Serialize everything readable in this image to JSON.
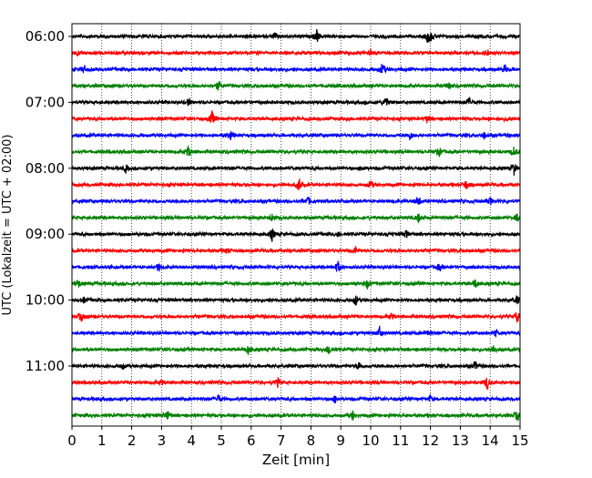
{
  "chart_data": {
    "type": "line",
    "title": "",
    "xlabel": "Zeit  [min]",
    "ylabel": "UTC (Lokalzeit = UTC + 02:00)",
    "xlim": [
      0,
      15
    ],
    "x_ticks": [
      0,
      1,
      2,
      3,
      4,
      5,
      6,
      7,
      8,
      9,
      10,
      11,
      12,
      13,
      14,
      15
    ],
    "x_tick_labels": [
      "0",
      "1",
      "2",
      "3",
      "4",
      "5",
      "6",
      "7",
      "8",
      "9",
      "10",
      "11",
      "12",
      "13",
      "14",
      "15"
    ],
    "y_tick_labels": [
      "06:00",
      "07:00",
      "08:00",
      "09:00",
      "10:00",
      "11:00"
    ],
    "y_tick_trace_index": [
      0,
      4,
      8,
      12,
      16,
      20
    ],
    "grid": "vertical-dotted",
    "trace_interval_minutes": 15,
    "color_cycle": [
      "#000000",
      "#ff0000",
      "#0000ff",
      "#008000"
    ],
    "traces": [
      {
        "start": "06:00",
        "color": "#000000",
        "events": [
          {
            "t": 8.2,
            "a": 7
          },
          {
            "t": 11.9,
            "a": 6
          },
          {
            "t": 12.0,
            "a": 5
          },
          {
            "t": 6.8,
            "a": 4
          }
        ]
      },
      {
        "start": "06:15",
        "color": "#ff0000",
        "events": [
          {
            "t": 0.2,
            "a": 3
          },
          {
            "t": 10.0,
            "a": 4
          },
          {
            "t": 13.9,
            "a": 4
          }
        ]
      },
      {
        "start": "06:30",
        "color": "#0000ff",
        "events": [
          {
            "t": 0.4,
            "a": 5
          },
          {
            "t": 10.4,
            "a": 8
          },
          {
            "t": 14.5,
            "a": 5
          }
        ]
      },
      {
        "start": "06:45",
        "color": "#008000",
        "events": [
          {
            "t": 4.9,
            "a": 6
          },
          {
            "t": 12.6,
            "a": 4
          }
        ]
      },
      {
        "start": "07:00",
        "color": "#000000",
        "events": [
          {
            "t": 3.9,
            "a": 4
          },
          {
            "t": 10.5,
            "a": 7
          },
          {
            "t": 13.3,
            "a": 5
          }
        ]
      },
      {
        "start": "07:15",
        "color": "#ff0000",
        "events": [
          {
            "t": 4.7,
            "a": 9
          },
          {
            "t": 11.9,
            "a": 5
          },
          {
            "t": 14.6,
            "a": 3
          }
        ]
      },
      {
        "start": "07:30",
        "color": "#0000ff",
        "events": [
          {
            "t": 5.3,
            "a": 5
          },
          {
            "t": 11.3,
            "a": 5
          },
          {
            "t": 13.8,
            "a": 3
          }
        ]
      },
      {
        "start": "07:45",
        "color": "#008000",
        "events": [
          {
            "t": 3.9,
            "a": 7
          },
          {
            "t": 12.3,
            "a": 5
          },
          {
            "t": 14.8,
            "a": 6
          }
        ]
      },
      {
        "start": "08:00",
        "color": "#000000",
        "events": [
          {
            "t": 1.8,
            "a": 4
          },
          {
            "t": 9.7,
            "a": 3
          },
          {
            "t": 14.8,
            "a": 7
          }
        ]
      },
      {
        "start": "08:15",
        "color": "#ff0000",
        "events": [
          {
            "t": 7.6,
            "a": 8
          },
          {
            "t": 10.0,
            "a": 5
          },
          {
            "t": 13.2,
            "a": 5
          }
        ]
      },
      {
        "start": "08:30",
        "color": "#0000ff",
        "events": [
          {
            "t": 7.9,
            "a": 5
          },
          {
            "t": 11.6,
            "a": 6
          },
          {
            "t": 14.0,
            "a": 4
          }
        ]
      },
      {
        "start": "08:45",
        "color": "#008000",
        "events": [
          {
            "t": 6.7,
            "a": 4
          },
          {
            "t": 11.6,
            "a": 5
          },
          {
            "t": 14.9,
            "a": 4
          }
        ]
      },
      {
        "start": "09:00",
        "color": "#000000",
        "events": [
          {
            "t": 6.7,
            "a": 7
          },
          {
            "t": 11.2,
            "a": 5
          },
          {
            "t": 8.9,
            "a": 3
          }
        ]
      },
      {
        "start": "09:15",
        "color": "#ff0000",
        "events": [
          {
            "t": 9.5,
            "a": 4
          },
          {
            "t": 5.2,
            "a": 3
          }
        ]
      },
      {
        "start": "09:30",
        "color": "#0000ff",
        "events": [
          {
            "t": 2.9,
            "a": 5
          },
          {
            "t": 8.9,
            "a": 7
          },
          {
            "t": 12.3,
            "a": 4
          }
        ]
      },
      {
        "start": "09:45",
        "color": "#008000",
        "events": [
          {
            "t": 0.2,
            "a": 5
          },
          {
            "t": 9.9,
            "a": 6
          },
          {
            "t": 13.5,
            "a": 5
          }
        ]
      },
      {
        "start": "10:00",
        "color": "#000000",
        "events": [
          {
            "t": 9.5,
            "a": 6
          },
          {
            "t": 14.9,
            "a": 5
          },
          {
            "t": 0.4,
            "a": 3
          }
        ]
      },
      {
        "start": "10:15",
        "color": "#ff0000",
        "events": [
          {
            "t": 0.3,
            "a": 5
          },
          {
            "t": 10.7,
            "a": 4
          },
          {
            "t": 14.9,
            "a": 7
          }
        ]
      },
      {
        "start": "10:30",
        "color": "#0000ff",
        "events": [
          {
            "t": 10.3,
            "a": 7
          },
          {
            "t": 11.9,
            "a": 5
          },
          {
            "t": 14.2,
            "a": 4
          }
        ]
      },
      {
        "start": "10:45",
        "color": "#008000",
        "events": [
          {
            "t": 8.6,
            "a": 7
          },
          {
            "t": 5.9,
            "a": 5
          },
          {
            "t": 14.1,
            "a": 5
          }
        ]
      },
      {
        "start": "11:00",
        "color": "#000000",
        "events": [
          {
            "t": 9.6,
            "a": 5
          },
          {
            "t": 13.5,
            "a": 5
          },
          {
            "t": 1.7,
            "a": 3
          }
        ]
      },
      {
        "start": "11:15",
        "color": "#ff0000",
        "events": [
          {
            "t": 13.9,
            "a": 8
          },
          {
            "t": 6.9,
            "a": 5
          },
          {
            "t": 3.0,
            "a": 3
          }
        ]
      },
      {
        "start": "11:30",
        "color": "#0000ff",
        "events": [
          {
            "t": 4.9,
            "a": 5
          },
          {
            "t": 8.8,
            "a": 4
          },
          {
            "t": 12.0,
            "a": 3
          }
        ]
      },
      {
        "start": "11:45",
        "color": "#008000",
        "events": [
          {
            "t": 3.2,
            "a": 6
          },
          {
            "t": 9.4,
            "a": 5
          },
          {
            "t": 14.9,
            "a": 6
          }
        ]
      }
    ]
  }
}
